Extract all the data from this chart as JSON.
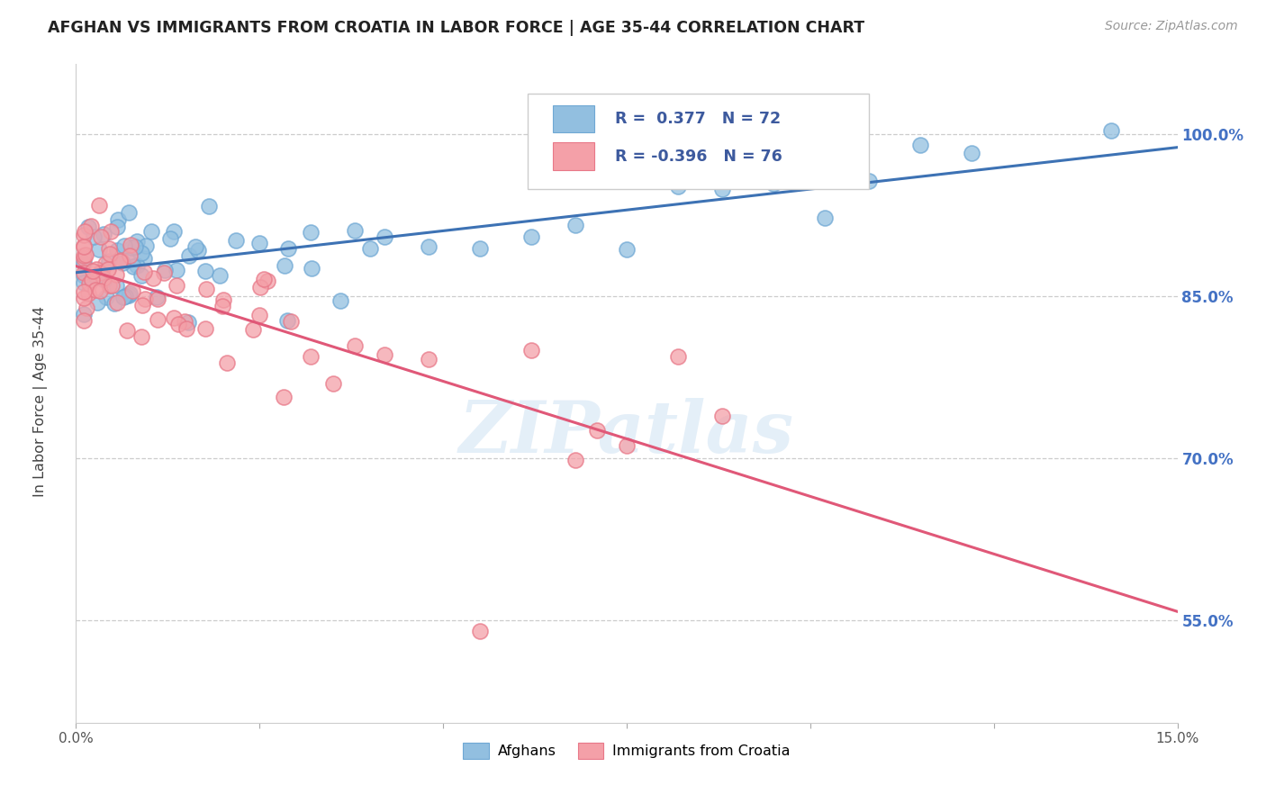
{
  "title": "AFGHAN VS IMMIGRANTS FROM CROATIA IN LABOR FORCE | AGE 35-44 CORRELATION CHART",
  "source": "Source: ZipAtlas.com",
  "ylabel": "In Labor Force | Age 35-44",
  "yticks": [
    0.55,
    0.7,
    0.85,
    1.0
  ],
  "ytick_labels": [
    "55.0%",
    "70.0%",
    "85.0%",
    "100.0%"
  ],
  "xmin": 0.0,
  "xmax": 0.15,
  "ymin": 0.455,
  "ymax": 1.065,
  "legend_label1": "Afghans",
  "legend_label2": "Immigrants from Croatia",
  "blue_color": "#92BFE0",
  "pink_color": "#F4A0A8",
  "blue_edge_color": "#6FA8D4",
  "pink_edge_color": "#E87888",
  "blue_line_color": "#3D72B4",
  "pink_line_color": "#E05878",
  "blue_r": 0.377,
  "blue_n": 72,
  "pink_r": -0.396,
  "pink_n": 76,
  "watermark": "ZIPatlas",
  "blue_line_y0": 0.872,
  "blue_line_y1": 0.988,
  "pink_line_y0": 0.878,
  "pink_line_y1": 0.558
}
